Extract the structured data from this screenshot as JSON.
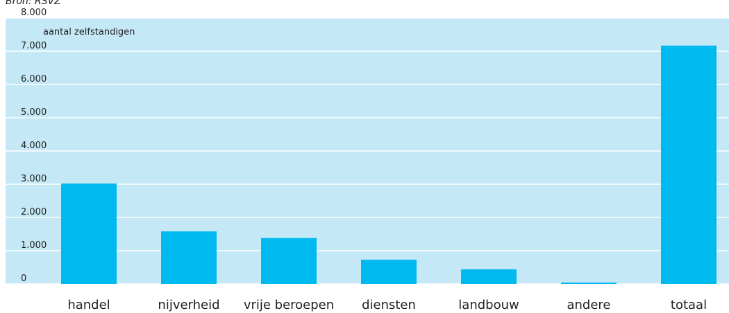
{
  "chart_data": {
    "type": "bar",
    "source": "Bron: RSVZ",
    "y_label": "aantal zelfstandigen",
    "categories": [
      "handel",
      "nijverheid",
      "vrije beroepen",
      "diensten",
      "landbouw",
      "andere",
      "totaal"
    ],
    "values": [
      3020,
      1580,
      1380,
      730,
      440,
      40,
      7170
    ],
    "color": "#00b9ef",
    "ylim": [
      0,
      8000
    ],
    "yticks": [
      0,
      {
        "value": 1000,
        "label": "1.000"
      },
      {
        "value": 2000,
        "label": "2.000"
      },
      {
        "value": 3000,
        "label": "3.000"
      },
      {
        "value": 4000,
        "label": "4.000"
      },
      {
        "value": 5000,
        "label": "5.000"
      },
      {
        "value": 6000,
        "label": "6.000"
      },
      {
        "value": 7000,
        "label": "7.000"
      },
      {
        "value": 8000,
        "label": "8.000"
      }
    ],
    "grid": true
  }
}
